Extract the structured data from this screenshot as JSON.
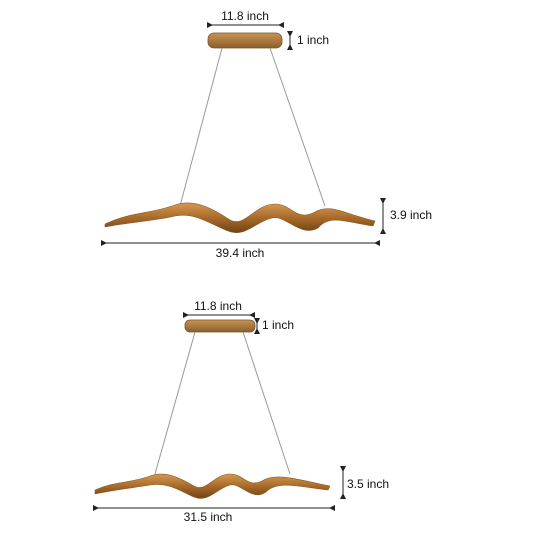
{
  "fixtures": [
    {
      "canopy_width": "11.8 inch",
      "canopy_height": "1 inch",
      "height": "3.9 inch",
      "length": "39.4 inch"
    },
    {
      "canopy_width": "11.8 inch",
      "canopy_height": "1 inch",
      "height": "3.5 inch",
      "length": "31.5 inch"
    }
  ]
}
